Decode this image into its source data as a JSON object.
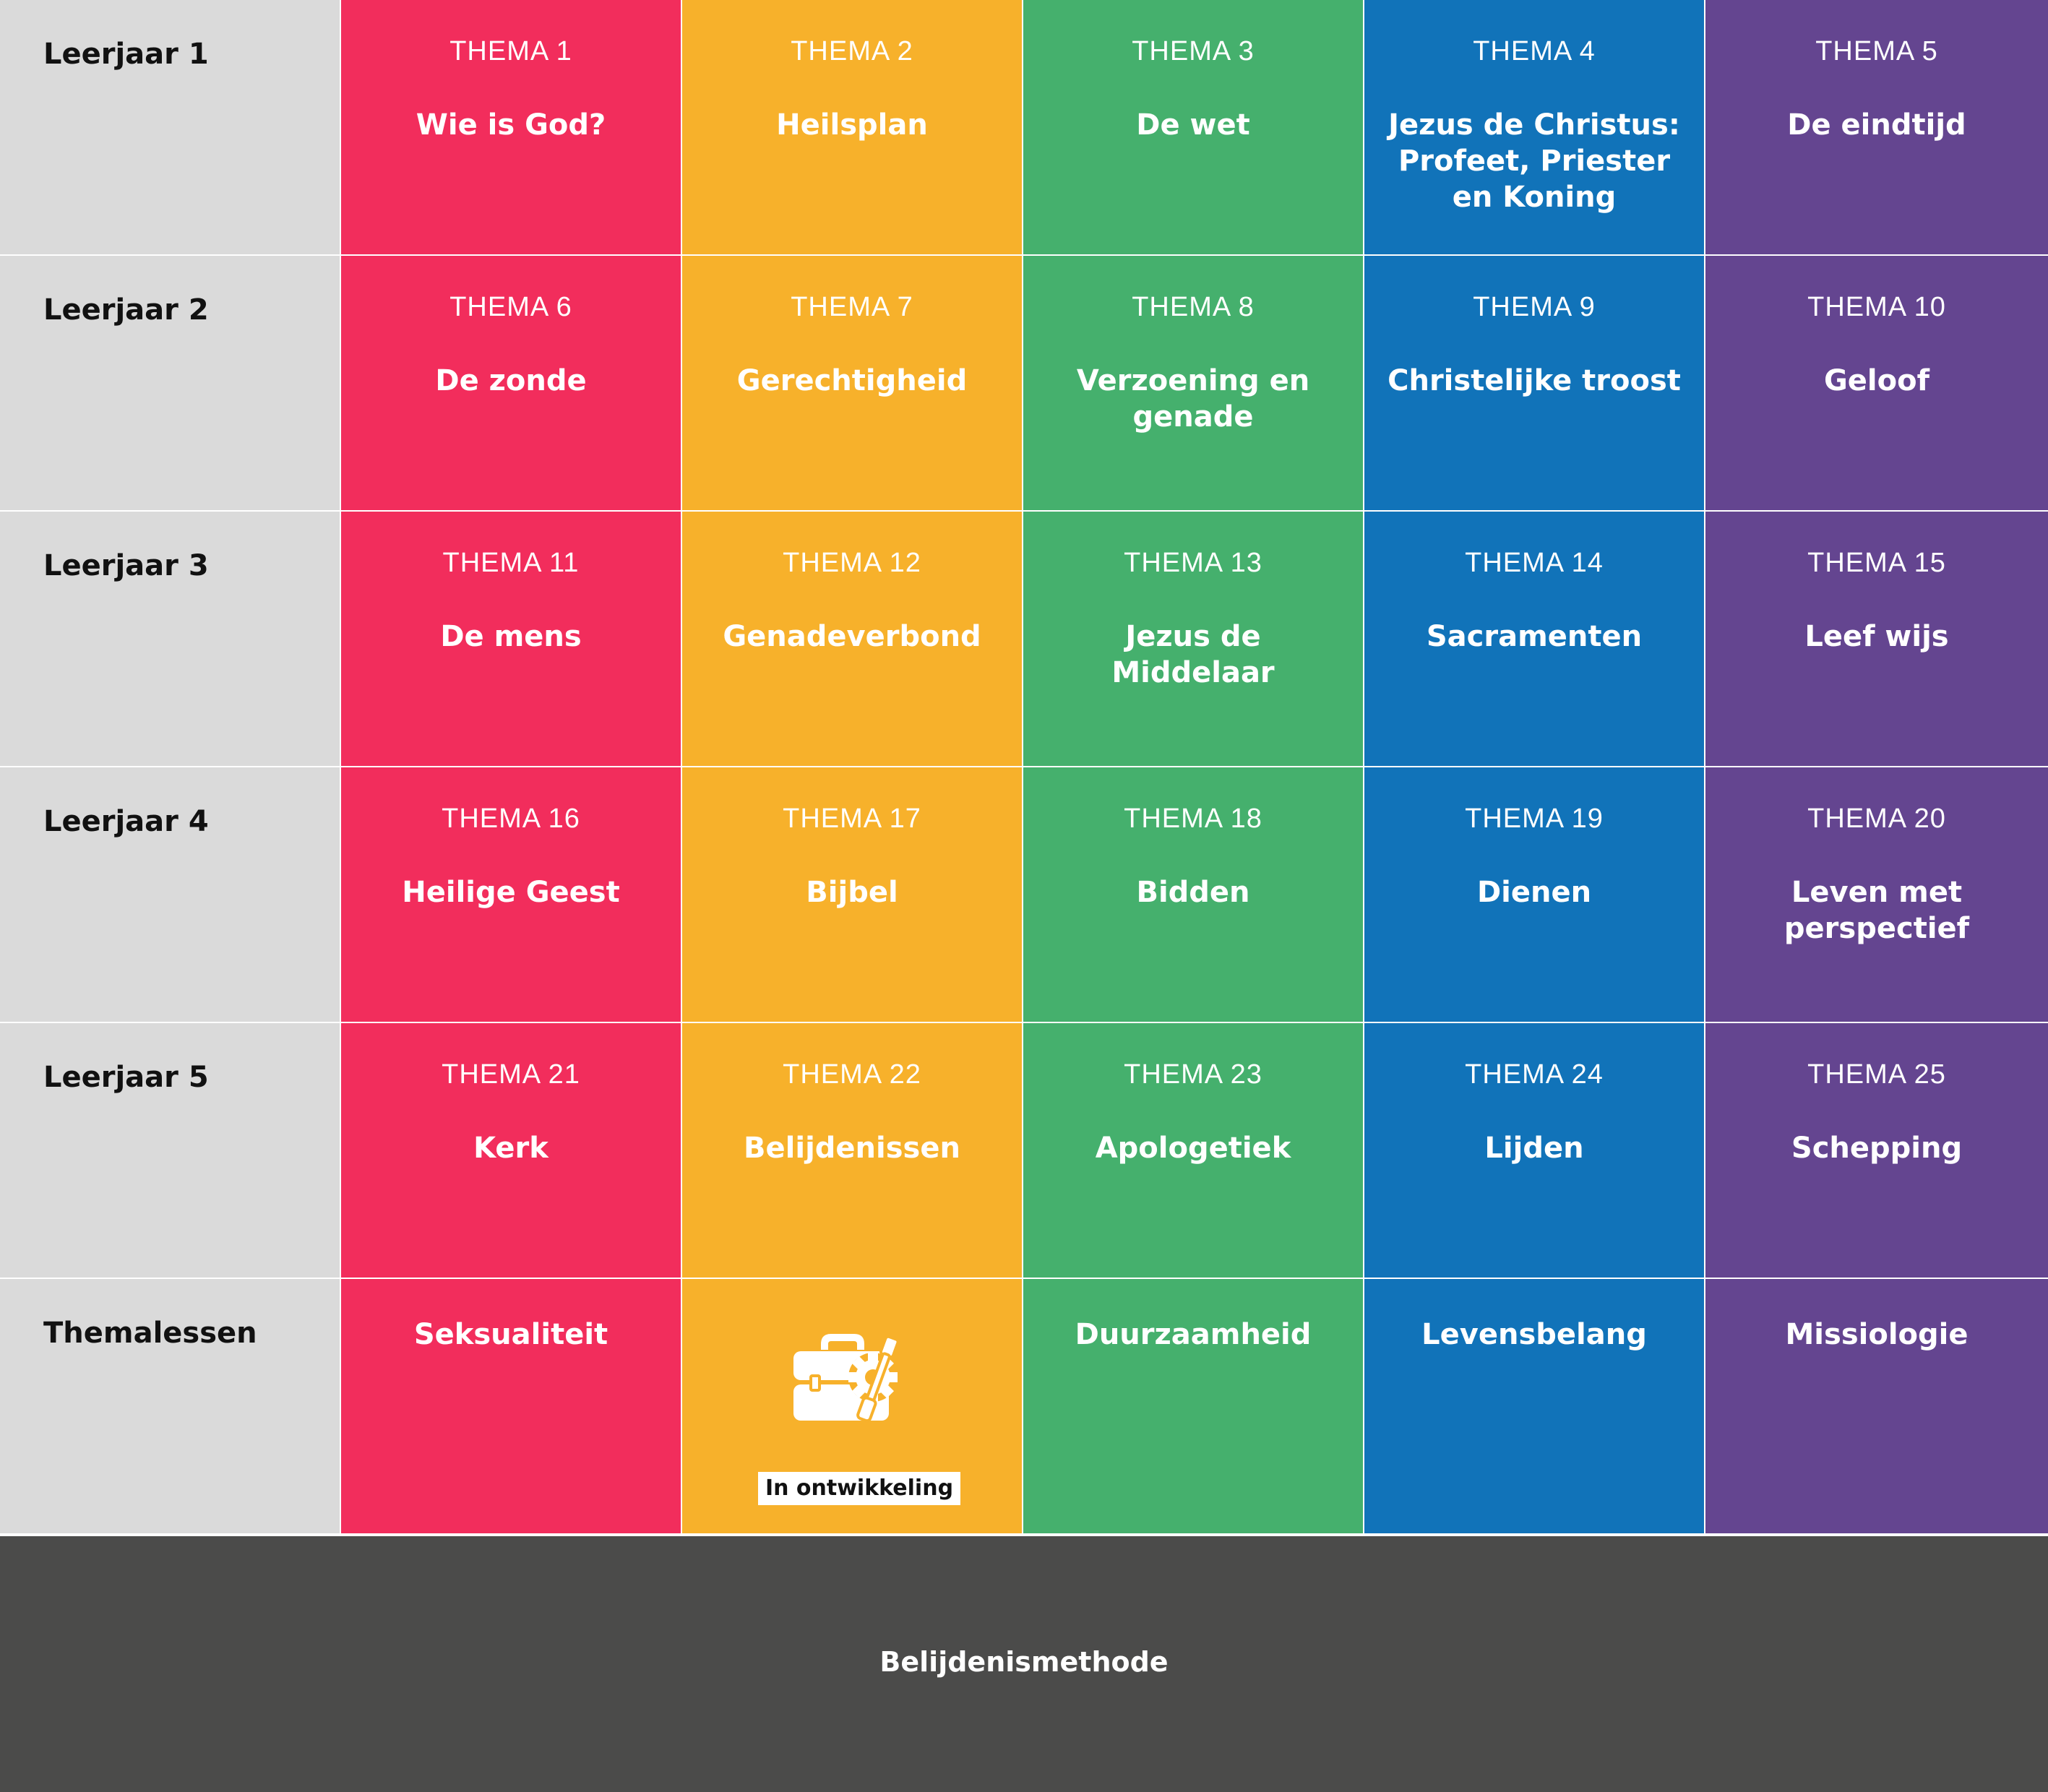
{
  "colors": {
    "label_bg": "#dadada",
    "col1": "#f22d5c",
    "col2": "#f7b12b",
    "col3": "#45b06d",
    "col4": "#1173b9",
    "col5": "#644590",
    "footer_bg": "#4b4b4a"
  },
  "rows": [
    {
      "label": "Leerjaar 1",
      "cells": [
        {
          "num": "THEMA 1",
          "title": "Wie is God?"
        },
        {
          "num": "THEMA 2",
          "title": "Heilsplan"
        },
        {
          "num": "THEMA 3",
          "title": "De wet"
        },
        {
          "num": "THEMA 4",
          "title": "Jezus de Christus: Profeet, Priester en Koning"
        },
        {
          "num": "THEMA 5",
          "title": "De eindtijd"
        }
      ]
    },
    {
      "label": "Leerjaar 2",
      "cells": [
        {
          "num": "THEMA 6",
          "title": "De zonde"
        },
        {
          "num": "THEMA 7",
          "title": "Gerechtigheid"
        },
        {
          "num": "THEMA 8",
          "title": "Verzoening en genade"
        },
        {
          "num": "THEMA 9",
          "title": "Christelijke troost"
        },
        {
          "num": "THEMA 10",
          "title": "Geloof"
        }
      ]
    },
    {
      "label": "Leerjaar 3",
      "cells": [
        {
          "num": "THEMA 11",
          "title": "De mens"
        },
        {
          "num": "THEMA 12",
          "title": "Genadeverbond"
        },
        {
          "num": "THEMA 13",
          "title": "Jezus de Middelaar"
        },
        {
          "num": "THEMA 14",
          "title": "Sacramenten"
        },
        {
          "num": "THEMA 15",
          "title": "Leef wijs"
        }
      ]
    },
    {
      "label": "Leerjaar 4",
      "cells": [
        {
          "num": "THEMA 16",
          "title": "Heilige Geest"
        },
        {
          "num": "THEMA 17",
          "title": "Bijbel"
        },
        {
          "num": "THEMA 18",
          "title": "Bidden"
        },
        {
          "num": "THEMA 19",
          "title": "Dienen"
        },
        {
          "num": "THEMA 20",
          "title": "Leven met perspectief"
        }
      ]
    },
    {
      "label": "Leerjaar 5",
      "cells": [
        {
          "num": "THEMA 21",
          "title": "Kerk"
        },
        {
          "num": "THEMA 22",
          "title": "Belijdenissen"
        },
        {
          "num": "THEMA 23",
          "title": "Apologetiek"
        },
        {
          "num": "THEMA 24",
          "title": "Lijden"
        },
        {
          "num": "THEMA 25",
          "title": "Schepping"
        }
      ]
    }
  ],
  "themalessen": {
    "label": "Themalessen",
    "lessons": [
      "Seksualiteit",
      "",
      "Duurzaamheid",
      "Levensbelang",
      "Missiologie"
    ],
    "dev_icon": "toolbox-wrench-gear-icon",
    "dev_badge": "In ontwikkeling"
  },
  "footer": {
    "title": "Belijdenismethode"
  }
}
